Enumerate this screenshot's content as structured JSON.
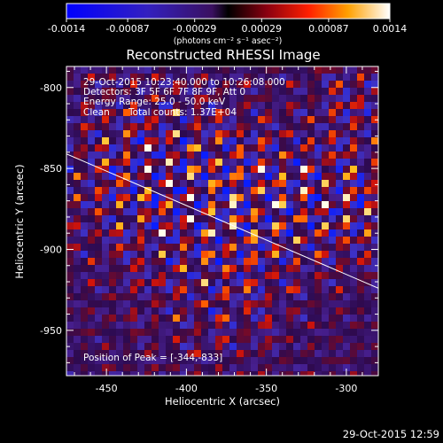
{
  "colorbar": {
    "ticks": [
      "-0.0014",
      "-0.00087",
      "-0.00029",
      "0.00029",
      "0.00087",
      "0.0014"
    ],
    "min": -0.0014,
    "max": 0.0014,
    "unit_label": "(photons cm⁻² s⁻¹ asec⁻²)"
  },
  "chart_data": {
    "type": "heatmap",
    "title": "Reconstructed RHESSI Image",
    "xlabel": "Heliocentric X (arcsec)",
    "ylabel": "Heliocentric Y (arcsec)",
    "xlim": [
      -475,
      -280
    ],
    "ylim": [
      -978,
      -787
    ],
    "x_ticks": [
      "-450",
      "-400",
      "-350",
      "-300"
    ],
    "y_ticks": [
      "-800",
      "-850",
      "-900",
      "-950"
    ],
    "x_tick_values": [
      -450,
      -400,
      -350,
      -300
    ],
    "y_tick_values": [
      -800,
      -850,
      -900,
      -950
    ],
    "limb_line": [
      [
        -475,
        -841
      ],
      [
        -280,
        -924
      ]
    ],
    "peak_position": [
      -344,
      -833
    ],
    "annotations": {
      "time_range": "29-Oct-2015 10:23:40.000 to 10:26:08.000",
      "detectors": "Detectors: 3F 5F 6F 7F 8F 9F, Att 0",
      "energy": "Energy Range: 25.0 - 50.0 keV",
      "method": "Clean",
      "counts": "Total counts: 1.37E+04",
      "peak_label": "Position of Peak = [-344,-833]"
    }
  },
  "footer": {
    "timestamp": "29-Oct-2015 12:59"
  }
}
